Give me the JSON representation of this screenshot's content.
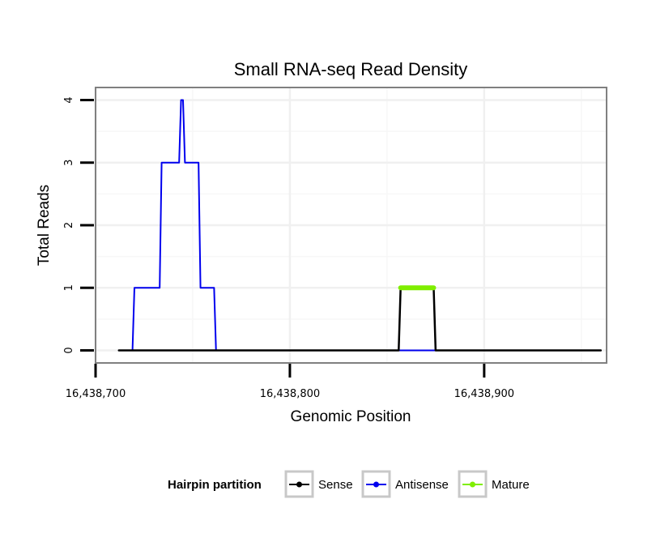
{
  "chart_data": {
    "type": "line",
    "title": "Small RNA-seq Read Density",
    "xlabel": "Genomic Position",
    "ylabel": "Total Reads",
    "xlim": [
      16438700,
      16438963
    ],
    "ylim": [
      -0.2,
      4.2
    ],
    "x_ticks": [
      16438700,
      16438800,
      16438900
    ],
    "x_tick_labels": [
      "16,438,700",
      "16,438,800",
      "16,438,900"
    ],
    "y_ticks": [
      0,
      1,
      2,
      3,
      4
    ],
    "y_tick_labels": [
      "0",
      "1",
      "2",
      "3",
      "4"
    ],
    "grid": true,
    "legend": {
      "title": "Hairpin partition",
      "position": "bottom",
      "entries": [
        "Sense",
        "Antisense",
        "Mature"
      ]
    },
    "series": [
      {
        "name": "Antisense",
        "color": "#0000ee",
        "x": [
          16438712,
          16438719,
          16438720,
          16438733,
          16438734,
          16438743,
          16438744,
          16438745,
          16438746,
          16438753,
          16438754,
          16438761,
          16438762,
          16438960
        ],
        "values": [
          0,
          0,
          1,
          1,
          3,
          3,
          4,
          4,
          3,
          3,
          1,
          1,
          0,
          0
        ]
      },
      {
        "name": "Sense",
        "color": "#000000",
        "x": [
          16438712,
          16438856,
          16438857,
          16438874,
          16438875,
          16438960
        ],
        "values": [
          0,
          0,
          1,
          1,
          0,
          0
        ]
      },
      {
        "name": "Mature",
        "color": "#7fee00",
        "x": [
          16438857,
          16438874
        ],
        "values": [
          1,
          1
        ]
      }
    ]
  }
}
